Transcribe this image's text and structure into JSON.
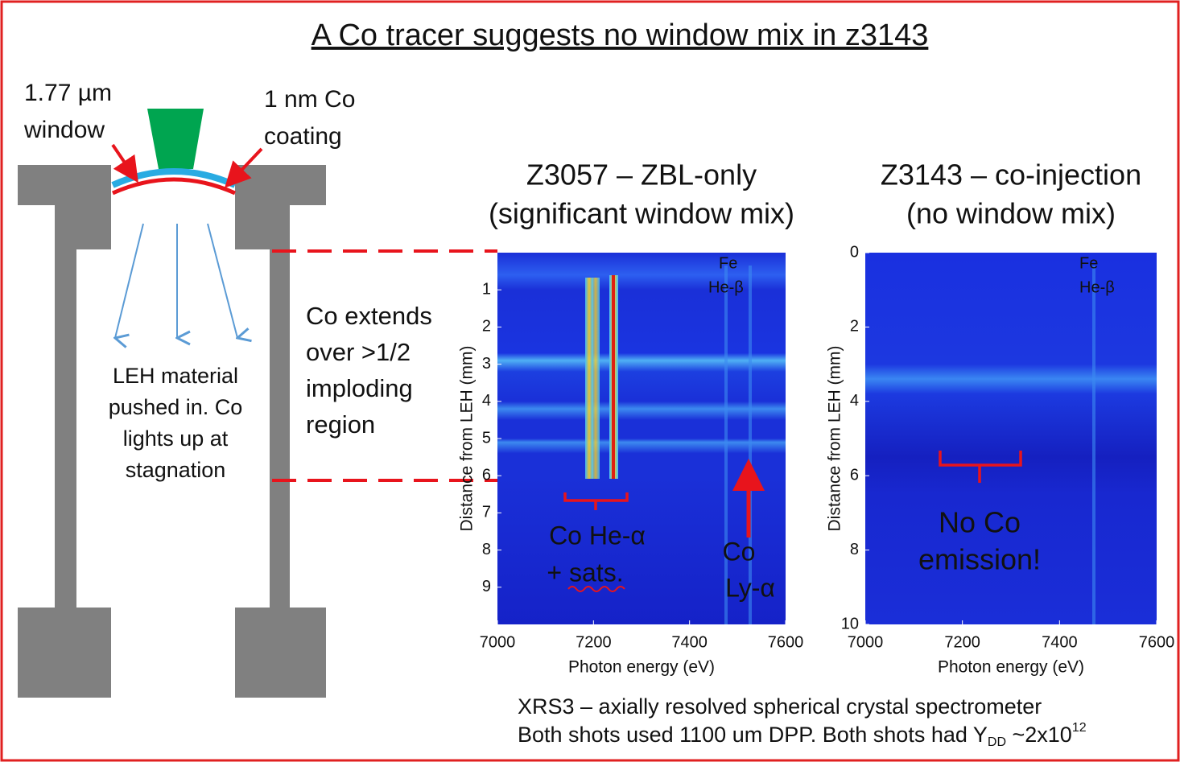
{
  "title": "A Co tracer suggests no window mix in z3143",
  "diagram": {
    "window_label": [
      "1.77 µm",
      "window"
    ],
    "coating_label": [
      "1 nm Co",
      "coating"
    ],
    "leh_label": [
      "LEH material",
      "pushed in. Co",
      "lights up at",
      "stagnation"
    ],
    "extent_label": [
      "Co extends",
      "over >1/2",
      "imploding",
      "region"
    ]
  },
  "plots": [
    {
      "title": [
        "Z3057 – ZBL-only",
        "(significant window mix)"
      ],
      "xlabel": "Photon energy (eV)",
      "ylabel": "Distance from LEH (mm)",
      "xlim": [
        7000,
        7600
      ],
      "xticks": [
        7000,
        7200,
        7400,
        7600
      ],
      "ylim": [
        0,
        10
      ],
      "yticks": [
        1,
        2,
        3,
        4,
        5,
        6,
        7,
        8,
        9
      ],
      "y_inverted": true,
      "annotations": [
        "Fe",
        "He-β",
        "Co He-α",
        "+ sats.",
        "Co",
        "Ly-α"
      ]
    },
    {
      "title": [
        "Z3143 – co-injection",
        "(no window mix)"
      ],
      "xlabel": "Photon energy (eV)",
      "ylabel": "Distance from LEH (mm)",
      "xlim": [
        7000,
        7600
      ],
      "xticks": [
        7000,
        7200,
        7400,
        7600
      ],
      "ylim": [
        0,
        10
      ],
      "yticks": [
        0,
        2,
        4,
        6,
        8,
        10
      ],
      "y_inverted": true,
      "annotations": [
        "Fe",
        "He-β",
        "No Co",
        "emission!"
      ]
    }
  ],
  "footer": [
    "XRS3 – axially resolved spherical crystal spectrometer",
    {
      "text": "Both shots used 1100 um DPP. Both shots had Y",
      "sub": "DD",
      "mid": " ~2x10",
      "sup": "12"
    }
  ]
}
